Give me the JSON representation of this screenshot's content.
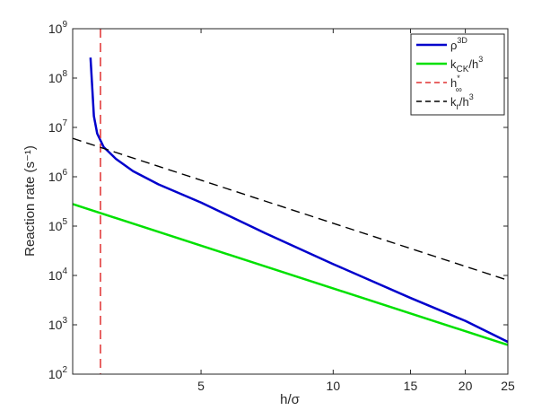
{
  "chart_data": {
    "type": "line",
    "xlabel": "h/σ",
    "ylabel": "Reaction rate (s⁻¹)",
    "xscale": "log",
    "yscale": "log",
    "xlim": [
      2.55,
      25
    ],
    "ylim": [
      100,
      1000000000
    ],
    "xticks": [
      5,
      10,
      15,
      20,
      25
    ],
    "xtick_labels": [
      "5",
      "10",
      "15",
      "20",
      "25"
    ],
    "yticks": [
      100,
      1000,
      10000,
      100000,
      1000000,
      10000000,
      100000000,
      1000000000
    ],
    "ytick_labels": [
      {
        "base": "10",
        "exp": "2"
      },
      {
        "base": "10",
        "exp": "3"
      },
      {
        "base": "10",
        "exp": "4"
      },
      {
        "base": "10",
        "exp": "5"
      },
      {
        "base": "10",
        "exp": "6"
      },
      {
        "base": "10",
        "exp": "7"
      },
      {
        "base": "10",
        "exp": "8"
      },
      {
        "base": "10",
        "exp": "9"
      }
    ],
    "grid": false,
    "legend_position": "top-right",
    "series": [
      {
        "key": "rho3d",
        "legend": {
          "main": "ρ",
          "sup": "3D",
          "sub": ""
        },
        "color": "#0000cc",
        "style": "solid",
        "x": [
          2.8,
          2.85,
          2.9,
          3.0,
          3.2,
          3.5,
          4.0,
          5.0,
          7.0,
          10.0,
          15.0,
          20.0,
          25.0
        ],
        "y": [
          260000000,
          17000000,
          7500000,
          4000000,
          2300000,
          1300000,
          700000,
          300000,
          72000,
          17000,
          3500,
          1200,
          450
        ]
      },
      {
        "key": "kck",
        "legend": {
          "main": "k",
          "sub": "CK",
          "tail": "/h",
          "sup": "3"
        },
        "color": "#00e000",
        "style": "solid",
        "x": [
          2.55,
          25.0
        ],
        "y": [
          280000,
          390
        ]
      },
      {
        "key": "hinf",
        "legend": {
          "main": "h",
          "sup": "*",
          "sub": "∞"
        },
        "color": "#e03030",
        "style": "dashed",
        "vline_x": 2.95
      },
      {
        "key": "kr",
        "legend": {
          "main": "k",
          "sub": "r",
          "tail": "/h",
          "sup": "3"
        },
        "color": "#000000",
        "style": "dashed",
        "x": [
          2.55,
          25.0
        ],
        "y": [
          6000000,
          8000
        ]
      }
    ]
  }
}
